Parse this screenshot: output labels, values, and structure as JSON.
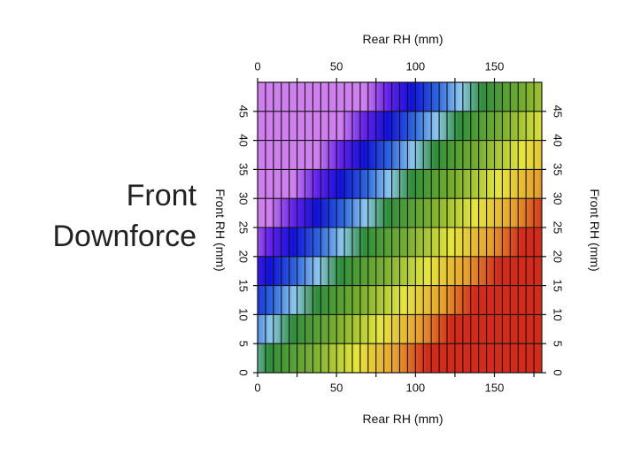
{
  "side_title": {
    "line1": "Front",
    "line2": "Downforce"
  },
  "chart_data": {
    "type": "heatmap",
    "title": "",
    "xlabel": "Rear RH (mm)",
    "ylabel": "Front RH (mm)",
    "x2label": "Rear RH (mm)",
    "y2label": "Front RH (mm)",
    "xlim": [
      0,
      180
    ],
    "ylim": [
      0,
      50
    ],
    "xticks": [
      0,
      50,
      100,
      150
    ],
    "yticks": [
      0,
      5,
      10,
      15,
      20,
      25,
      30,
      35,
      40,
      45
    ],
    "x_cell_width": 5,
    "y_cell_height": 5,
    "grid": true,
    "colorbar": "none",
    "color_stops": [
      {
        "value": -75,
        "color": "#d080ee"
      },
      {
        "value": -60,
        "color": "#6622ee"
      },
      {
        "value": -45,
        "color": "#1010e0"
      },
      {
        "value": -28,
        "color": "#2f6ae0"
      },
      {
        "value": -14,
        "color": "#8ec8ee"
      },
      {
        "value": 0,
        "color": "#2f8f3a"
      },
      {
        "value": 28,
        "color": "#7bb02c"
      },
      {
        "value": 55,
        "color": "#e6e63a"
      },
      {
        "value": 80,
        "color": "#e7a02a"
      },
      {
        "value": 100,
        "color": "#d42a1a"
      }
    ],
    "value_model": "rear_rh - 3.4 * front_rh + 2 * (rear_rh - 3.4 * front_rh) ... approximate diagonal gradient"
  }
}
